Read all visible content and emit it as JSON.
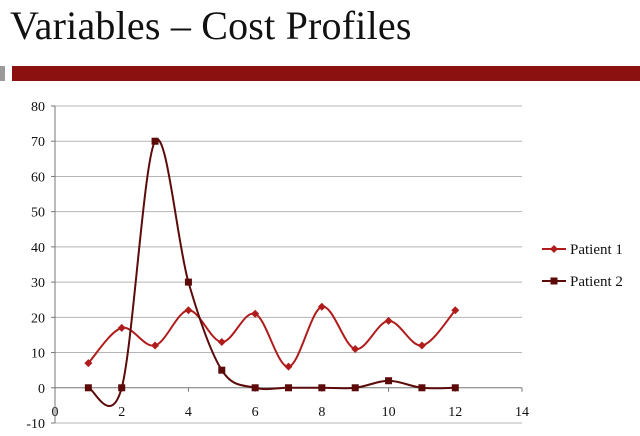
{
  "slide": {
    "title": "Variables – Cost Profiles"
  },
  "colors": {
    "accent_bar": "#8b1111",
    "patient1": "#b01c1c",
    "patient2": "#5c0a0a",
    "grid": "#b5b5b5"
  },
  "chart_data": {
    "type": "scatter",
    "title": "",
    "xlabel": "",
    "ylabel": "",
    "xlim": [
      0,
      14
    ],
    "ylim": [
      -10,
      80
    ],
    "xticks": [
      0,
      2,
      4,
      6,
      8,
      10,
      12,
      14
    ],
    "yticks": [
      -10,
      0,
      10,
      20,
      30,
      40,
      50,
      60,
      70,
      80
    ],
    "grid": true,
    "smoothed_lines": true,
    "legend_position": "right",
    "series": [
      {
        "name": "Patient 1",
        "marker": "diamond",
        "x": [
          1,
          2,
          3,
          4,
          5,
          6,
          7,
          8,
          9,
          10,
          11,
          12
        ],
        "y": [
          7,
          17,
          12,
          22,
          13,
          21,
          6,
          23,
          11,
          19,
          12,
          22
        ]
      },
      {
        "name": "Patient 2",
        "marker": "square",
        "x": [
          1,
          2,
          3,
          4,
          5,
          6,
          7,
          8,
          9,
          10,
          11,
          12
        ],
        "y": [
          0,
          0,
          70,
          30,
          5,
          0,
          0,
          0,
          0,
          2,
          0,
          0
        ]
      }
    ]
  }
}
